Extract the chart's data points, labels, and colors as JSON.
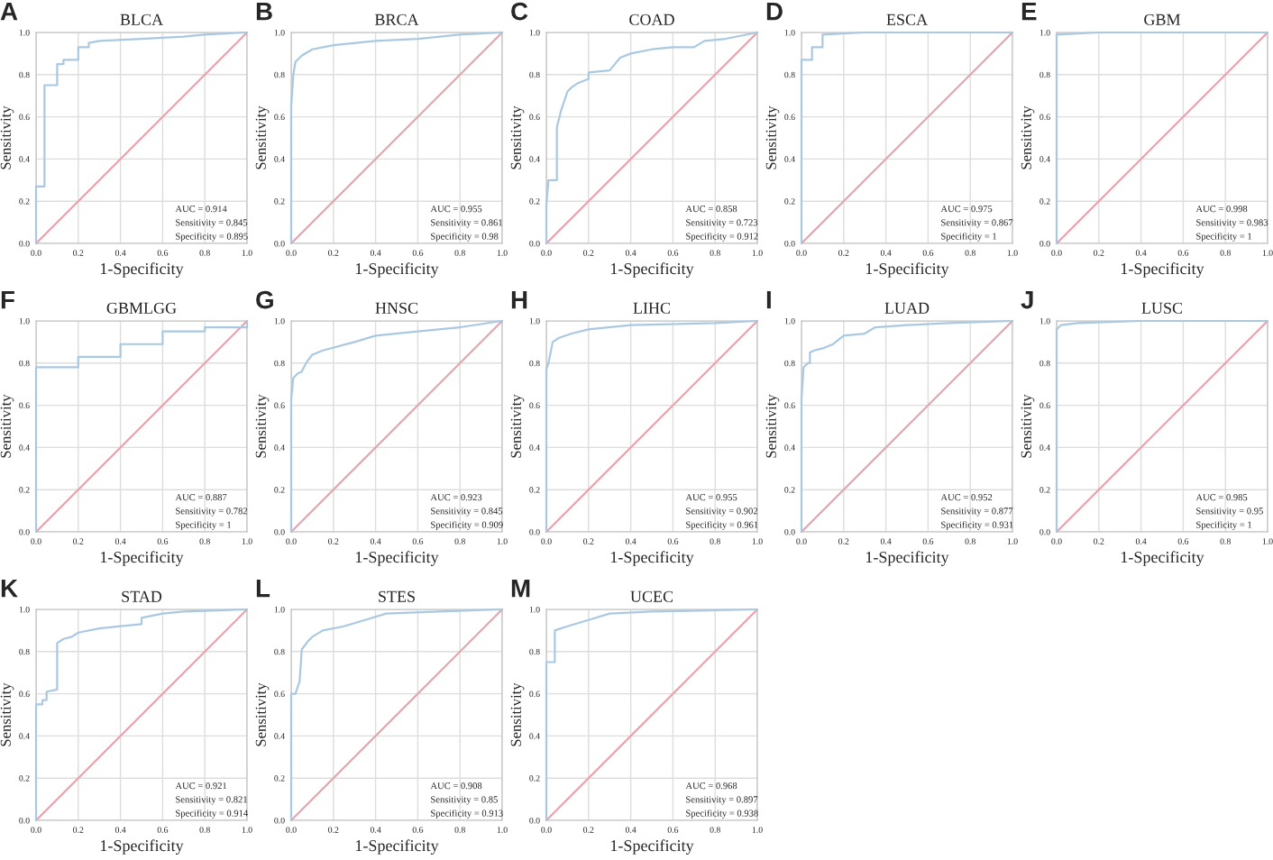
{
  "chart_data": [
    {
      "type": "line",
      "title": "BLCA",
      "xlabel": "1-Specificity",
      "ylabel": "Sensitivity",
      "xlim": [
        0,
        1
      ],
      "ylim": [
        0,
        1
      ],
      "xticks": [
        {
          "value": 0,
          "label": "0.0"
        },
        {
          "value": 0.2,
          "label": "0.2"
        },
        {
          "value": 0.4,
          "label": "0.4"
        },
        {
          "value": 0.6,
          "label": "0.6"
        },
        {
          "value": 0.8,
          "label": "0.8"
        },
        {
          "value": 1,
          "label": "1.0"
        }
      ],
      "yticks": [
        {
          "value": 0,
          "label": "0.0"
        },
        {
          "value": 0.2,
          "label": "0.2"
        },
        {
          "value": 0.4,
          "label": "0.4"
        },
        {
          "value": 0.6,
          "label": "0.6"
        },
        {
          "value": 0.8,
          "label": "0.8"
        },
        {
          "value": 1,
          "label": "1.0"
        }
      ],
      "grid": true,
      "annotations": [
        "A",
        "AUC = 0.914",
        "Sensitivity = 0.845",
        "Specificity = 0.895"
      ],
      "series": [
        {
          "color": "#a9c9e2",
          "x": [
            0,
            0,
            0.04,
            0.04,
            0.1,
            0.1,
            0.13,
            0.13,
            0.2,
            0.2,
            0.25,
            0.25,
            0.3,
            0.5,
            0.7,
            0.8,
            1
          ],
          "values": [
            0,
            0.27,
            0.27,
            0.75,
            0.75,
            0.85,
            0.85,
            0.87,
            0.87,
            0.93,
            0.93,
            0.95,
            0.96,
            0.97,
            0.98,
            0.99,
            1
          ]
        },
        {
          "color": "#e8a3ad",
          "x": [
            0,
            1
          ],
          "values": [
            0,
            1
          ]
        }
      ]
    },
    {
      "type": "line",
      "title": "BRCA",
      "xlabel": "1-Specificity",
      "ylabel": "Sensitivity",
      "xlim": [
        0,
        1
      ],
      "ylim": [
        0,
        1
      ],
      "xticks": [
        {
          "value": 0,
          "label": "0.0"
        },
        {
          "value": 0.2,
          "label": "0.2"
        },
        {
          "value": 0.4,
          "label": "0.4"
        },
        {
          "value": 0.6,
          "label": "0.6"
        },
        {
          "value": 0.8,
          "label": "0.8"
        },
        {
          "value": 1,
          "label": "1.0"
        }
      ],
      "yticks": [
        {
          "value": 0,
          "label": "0.0"
        },
        {
          "value": 0.2,
          "label": "0.2"
        },
        {
          "value": 0.4,
          "label": "0.4"
        },
        {
          "value": 0.6,
          "label": "0.6"
        },
        {
          "value": 0.8,
          "label": "0.8"
        },
        {
          "value": 1,
          "label": "1.0"
        }
      ],
      "grid": true,
      "annotations": [
        "B",
        "AUC = 0.955",
        "Sensitivity = 0.861",
        "Specificity = 0.98"
      ],
      "series": [
        {
          "color": "#a9c9e2",
          "x": [
            0,
            0,
            0.01,
            0.02,
            0.05,
            0.1,
            0.2,
            0.4,
            0.6,
            0.8,
            1
          ],
          "values": [
            0,
            0.65,
            0.8,
            0.86,
            0.89,
            0.92,
            0.94,
            0.96,
            0.97,
            0.99,
            1
          ]
        },
        {
          "color": "#e8a3ad",
          "x": [
            0,
            1
          ],
          "values": [
            0,
            1
          ]
        }
      ]
    },
    {
      "type": "line",
      "title": "COAD",
      "xlabel": "1-Specificity",
      "ylabel": "Sensitivity",
      "xlim": [
        0,
        1
      ],
      "ylim": [
        0,
        1
      ],
      "xticks": [
        {
          "value": 0,
          "label": "0.0"
        },
        {
          "value": 0.2,
          "label": "0.2"
        },
        {
          "value": 0.4,
          "label": "0.4"
        },
        {
          "value": 0.6,
          "label": "0.6"
        },
        {
          "value": 0.8,
          "label": "0.8"
        },
        {
          "value": 1,
          "label": "1.0"
        }
      ],
      "yticks": [
        {
          "value": 0,
          "label": "0.0"
        },
        {
          "value": 0.2,
          "label": "0.2"
        },
        {
          "value": 0.4,
          "label": "0.4"
        },
        {
          "value": 0.6,
          "label": "0.6"
        },
        {
          "value": 0.8,
          "label": "0.8"
        },
        {
          "value": 1,
          "label": "1.0"
        }
      ],
      "grid": true,
      "annotations": [
        "C",
        "AUC = 0.858",
        "Sensitivity = 0.723",
        "Specificity = 0.912"
      ],
      "series": [
        {
          "color": "#a9c9e2",
          "x": [
            0,
            0,
            0.01,
            0.05,
            0.05,
            0.07,
            0.1,
            0.12,
            0.15,
            0.2,
            0.2,
            0.3,
            0.35,
            0.4,
            0.5,
            0.6,
            0.7,
            0.75,
            0.85,
            1
          ],
          "values": [
            0,
            0.18,
            0.3,
            0.3,
            0.55,
            0.63,
            0.72,
            0.74,
            0.76,
            0.78,
            0.81,
            0.82,
            0.88,
            0.9,
            0.92,
            0.93,
            0.93,
            0.96,
            0.97,
            1
          ]
        },
        {
          "color": "#e8a3ad",
          "x": [
            0,
            1
          ],
          "values": [
            0,
            1
          ]
        }
      ]
    },
    {
      "type": "line",
      "title": "ESCA",
      "xlabel": "1-Specificity",
      "ylabel": "Sensitivity",
      "xlim": [
        0,
        1
      ],
      "ylim": [
        0,
        1
      ],
      "xticks": [
        {
          "value": 0,
          "label": "0.0"
        },
        {
          "value": 0.2,
          "label": "0.2"
        },
        {
          "value": 0.4,
          "label": "0.4"
        },
        {
          "value": 0.6,
          "label": "0.6"
        },
        {
          "value": 0.8,
          "label": "0.8"
        },
        {
          "value": 1,
          "label": "1.0"
        }
      ],
      "yticks": [
        {
          "value": 0,
          "label": "0.0"
        },
        {
          "value": 0.2,
          "label": "0.2"
        },
        {
          "value": 0.4,
          "label": "0.4"
        },
        {
          "value": 0.6,
          "label": "0.6"
        },
        {
          "value": 0.8,
          "label": "0.8"
        },
        {
          "value": 1,
          "label": "1.0"
        }
      ],
      "grid": true,
      "annotations": [
        "D",
        "AUC = 0.975",
        "Sensitivity = 0.867",
        "Specificity = 1"
      ],
      "series": [
        {
          "color": "#a9c9e2",
          "x": [
            0,
            0,
            0.05,
            0.05,
            0.1,
            0.1,
            0.3,
            1
          ],
          "values": [
            0,
            0.87,
            0.87,
            0.93,
            0.93,
            0.99,
            1,
            1
          ]
        },
        {
          "color": "#e8a3ad",
          "x": [
            0,
            1
          ],
          "values": [
            0,
            1
          ]
        }
      ]
    },
    {
      "type": "line",
      "title": "GBM",
      "xlabel": "1-Specificity",
      "ylabel": "Sensitivity",
      "xlim": [
        0,
        1
      ],
      "ylim": [
        0,
        1
      ],
      "xticks": [
        {
          "value": 0,
          "label": "0.0"
        },
        {
          "value": 0.2,
          "label": "0.2"
        },
        {
          "value": 0.4,
          "label": "0.4"
        },
        {
          "value": 0.6,
          "label": "0.6"
        },
        {
          "value": 0.8,
          "label": "0.8"
        },
        {
          "value": 1,
          "label": "1.0"
        }
      ],
      "yticks": [
        {
          "value": 0,
          "label": "0.0"
        },
        {
          "value": 0.2,
          "label": "0.2"
        },
        {
          "value": 0.4,
          "label": "0.4"
        },
        {
          "value": 0.6,
          "label": "0.6"
        },
        {
          "value": 0.8,
          "label": "0.8"
        },
        {
          "value": 1,
          "label": "1.0"
        }
      ],
      "grid": true,
      "annotations": [
        "E",
        "AUC = 0.998",
        "Sensitivity = 0.983",
        "Specificity = 1"
      ],
      "series": [
        {
          "color": "#a9c9e2",
          "x": [
            0,
            0,
            0.2,
            1
          ],
          "values": [
            0,
            0.99,
            1,
            1
          ]
        },
        {
          "color": "#e8a3ad",
          "x": [
            0,
            1
          ],
          "values": [
            0,
            1
          ]
        }
      ]
    },
    {
      "type": "line",
      "title": "GBMLGG",
      "xlabel": "1-Specificity",
      "ylabel": "Sensitivity",
      "xlim": [
        0,
        1
      ],
      "ylim": [
        0,
        1
      ],
      "xticks": [
        {
          "value": 0,
          "label": "0.0"
        },
        {
          "value": 0.2,
          "label": "0.2"
        },
        {
          "value": 0.4,
          "label": "0.4"
        },
        {
          "value": 0.6,
          "label": "0.6"
        },
        {
          "value": 0.8,
          "label": "0.8"
        },
        {
          "value": 1,
          "label": "1.0"
        }
      ],
      "yticks": [
        {
          "value": 0,
          "label": "0.0"
        },
        {
          "value": 0.2,
          "label": "0.2"
        },
        {
          "value": 0.4,
          "label": "0.4"
        },
        {
          "value": 0.6,
          "label": "0.6"
        },
        {
          "value": 0.8,
          "label": "0.8"
        },
        {
          "value": 1,
          "label": "1.0"
        }
      ],
      "grid": true,
      "annotations": [
        "F",
        "AUC = 0.887",
        "Sensitivity = 0.782",
        "Specificity = 1"
      ],
      "series": [
        {
          "color": "#a9c9e2",
          "x": [
            0,
            0,
            0.2,
            0.2,
            0.4,
            0.4,
            0.6,
            0.6,
            0.8,
            0.8,
            1,
            1
          ],
          "values": [
            0,
            0.78,
            0.78,
            0.83,
            0.83,
            0.89,
            0.89,
            0.95,
            0.95,
            0.97,
            0.97,
            1
          ]
        },
        {
          "color": "#e8a3ad",
          "x": [
            0,
            1
          ],
          "values": [
            0,
            1
          ]
        }
      ]
    },
    {
      "type": "line",
      "title": "HNSC",
      "xlabel": "1-Specificity",
      "ylabel": "Sensitivity",
      "xlim": [
        0,
        1
      ],
      "ylim": [
        0,
        1
      ],
      "xticks": [
        {
          "value": 0,
          "label": "0.0"
        },
        {
          "value": 0.2,
          "label": "0.2"
        },
        {
          "value": 0.4,
          "label": "0.4"
        },
        {
          "value": 0.6,
          "label": "0.6"
        },
        {
          "value": 0.8,
          "label": "0.8"
        },
        {
          "value": 1,
          "label": "1.0"
        }
      ],
      "yticks": [
        {
          "value": 0,
          "label": "0.0"
        },
        {
          "value": 0.2,
          "label": "0.2"
        },
        {
          "value": 0.4,
          "label": "0.4"
        },
        {
          "value": 0.6,
          "label": "0.6"
        },
        {
          "value": 0.8,
          "label": "0.8"
        },
        {
          "value": 1,
          "label": "1.0"
        }
      ],
      "grid": true,
      "annotations": [
        "G",
        "AUC = 0.923",
        "Sensitivity = 0.845",
        "Specificity = 0.909"
      ],
      "series": [
        {
          "color": "#a9c9e2",
          "x": [
            0,
            0,
            0.01,
            0.03,
            0.05,
            0.07,
            0.1,
            0.15,
            0.3,
            0.4,
            0.6,
            0.8,
            1
          ],
          "values": [
            0,
            0.63,
            0.73,
            0.75,
            0.76,
            0.8,
            0.84,
            0.86,
            0.9,
            0.93,
            0.95,
            0.97,
            1
          ]
        },
        {
          "color": "#e8a3ad",
          "x": [
            0,
            1
          ],
          "values": [
            0,
            1
          ]
        }
      ]
    },
    {
      "type": "line",
      "title": "LIHC",
      "xlabel": "1-Specificity",
      "ylabel": "Sensitivity",
      "xlim": [
        0,
        1
      ],
      "ylim": [
        0,
        1
      ],
      "xticks": [
        {
          "value": 0,
          "label": "0.0"
        },
        {
          "value": 0.2,
          "label": "0.2"
        },
        {
          "value": 0.4,
          "label": "0.4"
        },
        {
          "value": 0.6,
          "label": "0.6"
        },
        {
          "value": 0.8,
          "label": "0.8"
        },
        {
          "value": 1,
          "label": "1.0"
        }
      ],
      "yticks": [
        {
          "value": 0,
          "label": "0.0"
        },
        {
          "value": 0.2,
          "label": "0.2"
        },
        {
          "value": 0.4,
          "label": "0.4"
        },
        {
          "value": 0.6,
          "label": "0.6"
        },
        {
          "value": 0.8,
          "label": "0.8"
        },
        {
          "value": 1,
          "label": "1.0"
        }
      ],
      "grid": true,
      "annotations": [
        "H",
        "AUC = 0.955",
        "Sensitivity = 0.902",
        "Specificity = 0.961"
      ],
      "series": [
        {
          "color": "#a9c9e2",
          "x": [
            0,
            0,
            0.01,
            0.03,
            0.06,
            0.12,
            0.2,
            0.4,
            0.8,
            1
          ],
          "values": [
            0,
            0.77,
            0.8,
            0.9,
            0.92,
            0.94,
            0.96,
            0.98,
            0.99,
            1
          ]
        },
        {
          "color": "#e8a3ad",
          "x": [
            0,
            1
          ],
          "values": [
            0,
            1
          ]
        }
      ]
    },
    {
      "type": "line",
      "title": "LUAD",
      "xlabel": "1-Specificity",
      "ylabel": "Sensitivity",
      "xlim": [
        0,
        1
      ],
      "ylim": [
        0,
        1
      ],
      "xticks": [
        {
          "value": 0,
          "label": "0.0"
        },
        {
          "value": 0.2,
          "label": "0.2"
        },
        {
          "value": 0.4,
          "label": "0.4"
        },
        {
          "value": 0.6,
          "label": "0.6"
        },
        {
          "value": 0.8,
          "label": "0.8"
        },
        {
          "value": 1,
          "label": "1.0"
        }
      ],
      "yticks": [
        {
          "value": 0,
          "label": "0.0"
        },
        {
          "value": 0.2,
          "label": "0.2"
        },
        {
          "value": 0.4,
          "label": "0.4"
        },
        {
          "value": 0.6,
          "label": "0.6"
        },
        {
          "value": 0.8,
          "label": "0.8"
        },
        {
          "value": 1,
          "label": "1.0"
        }
      ],
      "grid": true,
      "annotations": [
        "I",
        "AUC = 0.952",
        "Sensitivity = 0.877",
        "Specificity = 0.931"
      ],
      "series": [
        {
          "color": "#a9c9e2",
          "x": [
            0,
            0,
            0.01,
            0.03,
            0.04,
            0.04,
            0.06,
            0.1,
            0.15,
            0.2,
            0.3,
            0.35,
            0.5,
            0.7,
            1
          ],
          "values": [
            0,
            0.63,
            0.78,
            0.8,
            0.8,
            0.85,
            0.86,
            0.87,
            0.89,
            0.93,
            0.94,
            0.97,
            0.98,
            0.99,
            1
          ]
        },
        {
          "color": "#e8a3ad",
          "x": [
            0,
            1
          ],
          "values": [
            0,
            1
          ]
        }
      ]
    },
    {
      "type": "line",
      "title": "LUSC",
      "xlabel": "1-Specificity",
      "ylabel": "Sensitivity",
      "xlim": [
        0,
        1
      ],
      "ylim": [
        0,
        1
      ],
      "xticks": [
        {
          "value": 0,
          "label": "0.0"
        },
        {
          "value": 0.2,
          "label": "0.2"
        },
        {
          "value": 0.4,
          "label": "0.4"
        },
        {
          "value": 0.6,
          "label": "0.6"
        },
        {
          "value": 0.8,
          "label": "0.8"
        },
        {
          "value": 1,
          "label": "1.0"
        }
      ],
      "yticks": [
        {
          "value": 0,
          "label": "0.0"
        },
        {
          "value": 0.2,
          "label": "0.2"
        },
        {
          "value": 0.4,
          "label": "0.4"
        },
        {
          "value": 0.6,
          "label": "0.6"
        },
        {
          "value": 0.8,
          "label": "0.8"
        },
        {
          "value": 1,
          "label": "1.0"
        }
      ],
      "grid": true,
      "annotations": [
        "J",
        "AUC = 0.985",
        "Sensitivity = 0.95",
        "Specificity = 1"
      ],
      "series": [
        {
          "color": "#a9c9e2",
          "x": [
            0,
            0,
            0.02,
            0.1,
            0.4,
            1
          ],
          "values": [
            0,
            0.96,
            0.98,
            0.99,
            1,
            1
          ]
        },
        {
          "color": "#e8a3ad",
          "x": [
            0,
            1
          ],
          "values": [
            0,
            1
          ]
        }
      ]
    },
    {
      "type": "line",
      "title": "STAD",
      "xlabel": "1-Specificity",
      "ylabel": "Sensitivity",
      "xlim": [
        0,
        1
      ],
      "ylim": [
        0,
        1
      ],
      "xticks": [
        {
          "value": 0,
          "label": "0.0"
        },
        {
          "value": 0.2,
          "label": "0.2"
        },
        {
          "value": 0.4,
          "label": "0.4"
        },
        {
          "value": 0.6,
          "label": "0.6"
        },
        {
          "value": 0.8,
          "label": "0.8"
        },
        {
          "value": 1,
          "label": "1.0"
        }
      ],
      "yticks": [
        {
          "value": 0,
          "label": "0.0"
        },
        {
          "value": 0.2,
          "label": "0.2"
        },
        {
          "value": 0.4,
          "label": "0.4"
        },
        {
          "value": 0.6,
          "label": "0.6"
        },
        {
          "value": 0.8,
          "label": "0.8"
        },
        {
          "value": 1,
          "label": "1.0"
        }
      ],
      "grid": true,
      "annotations": [
        "K",
        "AUC = 0.921",
        "Sensitivity = 0.821",
        "Specificity = 0.914"
      ],
      "series": [
        {
          "color": "#a9c9e2",
          "x": [
            0,
            0,
            0.03,
            0.03,
            0.05,
            0.05,
            0.1,
            0.1,
            0.13,
            0.17,
            0.2,
            0.3,
            0.4,
            0.5,
            0.5,
            0.6,
            0.7,
            1
          ],
          "values": [
            0,
            0.55,
            0.55,
            0.57,
            0.57,
            0.61,
            0.62,
            0.84,
            0.86,
            0.87,
            0.89,
            0.91,
            0.92,
            0.93,
            0.96,
            0.98,
            0.99,
            1
          ]
        },
        {
          "color": "#e8a3ad",
          "x": [
            0,
            1
          ],
          "values": [
            0,
            1
          ]
        }
      ]
    },
    {
      "type": "line",
      "title": "STES",
      "xlabel": "1-Specificity",
      "ylabel": "Sensitivity",
      "xlim": [
        0,
        1
      ],
      "ylim": [
        0,
        1
      ],
      "xticks": [
        {
          "value": 0,
          "label": "0.0"
        },
        {
          "value": 0.2,
          "label": "0.2"
        },
        {
          "value": 0.4,
          "label": "0.4"
        },
        {
          "value": 0.6,
          "label": "0.6"
        },
        {
          "value": 0.8,
          "label": "0.8"
        },
        {
          "value": 1,
          "label": "1.0"
        }
      ],
      "yticks": [
        {
          "value": 0,
          "label": "0.0"
        },
        {
          "value": 0.2,
          "label": "0.2"
        },
        {
          "value": 0.4,
          "label": "0.4"
        },
        {
          "value": 0.6,
          "label": "0.6"
        },
        {
          "value": 0.8,
          "label": "0.8"
        },
        {
          "value": 1,
          "label": "1.0"
        }
      ],
      "grid": true,
      "annotations": [
        "L",
        "AUC = 0.908",
        "Sensitivity = 0.85",
        "Specificity = 0.913"
      ],
      "series": [
        {
          "color": "#a9c9e2",
          "x": [
            0,
            0,
            0.02,
            0.04,
            0.05,
            0.08,
            0.1,
            0.15,
            0.25,
            0.35,
            0.45,
            0.7,
            1
          ],
          "values": [
            0,
            0.6,
            0.6,
            0.66,
            0.81,
            0.85,
            0.87,
            0.9,
            0.92,
            0.95,
            0.98,
            0.99,
            1
          ]
        },
        {
          "color": "#e8a3ad",
          "x": [
            0,
            1
          ],
          "values": [
            0,
            1
          ]
        }
      ]
    },
    {
      "type": "line",
      "title": "UCEC",
      "xlabel": "1-Specificity",
      "ylabel": "Sensitivity",
      "xlim": [
        0,
        1
      ],
      "ylim": [
        0,
        1
      ],
      "xticks": [
        {
          "value": 0,
          "label": "0.0"
        },
        {
          "value": 0.2,
          "label": "0.2"
        },
        {
          "value": 0.4,
          "label": "0.4"
        },
        {
          "value": 0.6,
          "label": "0.6"
        },
        {
          "value": 0.8,
          "label": "0.8"
        },
        {
          "value": 1,
          "label": "1.0"
        }
      ],
      "yticks": [
        {
          "value": 0,
          "label": "0.0"
        },
        {
          "value": 0.2,
          "label": "0.2"
        },
        {
          "value": 0.4,
          "label": "0.4"
        },
        {
          "value": 0.6,
          "label": "0.6"
        },
        {
          "value": 0.8,
          "label": "0.8"
        },
        {
          "value": 1,
          "label": "1.0"
        }
      ],
      "grid": true,
      "annotations": [
        "M",
        "AUC = 0.968",
        "Sensitivity = 0.897",
        "Specificity = 0.938"
      ],
      "series": [
        {
          "color": "#a9c9e2",
          "x": [
            0,
            0,
            0.04,
            0.04,
            0.1,
            0.2,
            0.3,
            0.5,
            1
          ],
          "values": [
            0,
            0.75,
            0.75,
            0.9,
            0.92,
            0.95,
            0.98,
            0.99,
            1
          ]
        },
        {
          "color": "#e8a3ad",
          "x": [
            0,
            1
          ],
          "values": [
            0,
            1
          ]
        }
      ]
    }
  ]
}
